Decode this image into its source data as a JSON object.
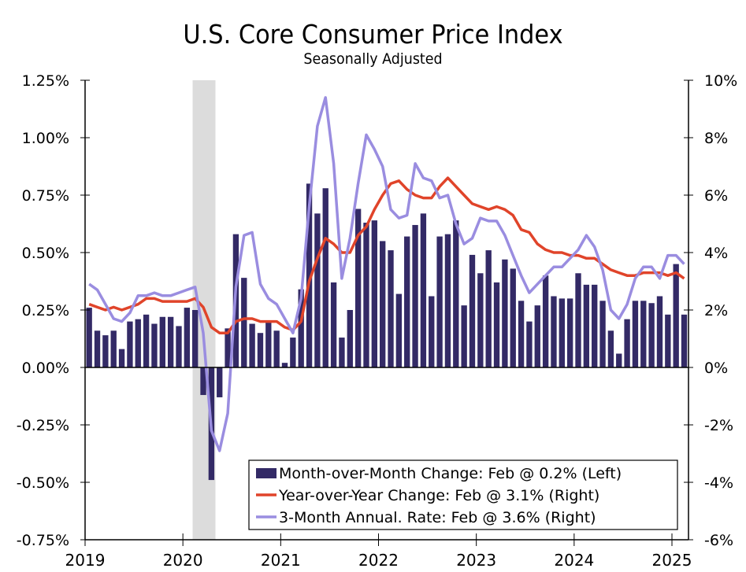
{
  "chart_data": {
    "type": "bar",
    "title": "U.S. Core Consumer Price Index",
    "subtitle": "Seasonally Adjusted",
    "xlabel": "",
    "ylabel_left": "",
    "ylabel_right": "",
    "x_start": "2019-01",
    "x_tick_labels": [
      "2019",
      "2020",
      "2021",
      "2022",
      "2023",
      "2024",
      "2025"
    ],
    "y_left": {
      "range": [
        -0.75,
        1.25
      ],
      "ticks": [
        1.25,
        1.0,
        0.75,
        0.5,
        0.25,
        0.0,
        -0.25,
        -0.5,
        -0.75
      ],
      "tick_labels": [
        "1.25%",
        "1.00%",
        "0.75%",
        "0.50%",
        "0.25%",
        "0.00%",
        "-0.25%",
        "-0.50%",
        "-0.75%"
      ]
    },
    "y_right": {
      "range": [
        -6,
        10
      ],
      "ticks": [
        10,
        8,
        6,
        4,
        2,
        0,
        -2,
        -4,
        -6
      ],
      "tick_labels": [
        "10%",
        "8%",
        "6%",
        "4%",
        "2%",
        "0%",
        "-2%",
        "-4%",
        "-6%"
      ]
    },
    "grid": false,
    "recession_shading": {
      "start": "2020-02",
      "end": "2020-04",
      "color": "#dcdcdc"
    },
    "legend_position": "bottom-right",
    "series": [
      {
        "name": "Month-over-Month Change: Feb @ 0.2% (Left)",
        "type": "bar",
        "axis": "left",
        "color": "#332a66",
        "values": [
          0.26,
          0.16,
          0.14,
          0.16,
          0.08,
          0.2,
          0.21,
          0.23,
          0.19,
          0.22,
          0.22,
          0.18,
          0.26,
          0.25,
          -0.12,
          -0.49,
          -0.13,
          0.17,
          0.58,
          0.39,
          0.19,
          0.15,
          0.2,
          0.16,
          0.02,
          0.13,
          0.34,
          0.8,
          0.67,
          0.78,
          0.37,
          0.13,
          0.25,
          0.69,
          0.63,
          0.64,
          0.55,
          0.51,
          0.32,
          0.57,
          0.62,
          0.67,
          0.31,
          0.57,
          0.58,
          0.64,
          0.27,
          0.49,
          0.41,
          0.51,
          0.37,
          0.47,
          0.43,
          0.29,
          0.2,
          0.27,
          0.4,
          0.31,
          0.3,
          0.3,
          0.41,
          0.36,
          0.36,
          0.29,
          0.16,
          0.06,
          0.21,
          0.29,
          0.29,
          0.28,
          0.31,
          0.23,
          0.45,
          0.23
        ]
      },
      {
        "name": "Year-over-Year Change: Feb @ 3.1% (Right)",
        "type": "line",
        "axis": "right",
        "color": "#e0442a",
        "values": [
          2.2,
          2.1,
          2.0,
          2.1,
          2.0,
          2.1,
          2.2,
          2.4,
          2.4,
          2.3,
          2.3,
          2.3,
          2.3,
          2.4,
          2.1,
          1.4,
          1.2,
          1.2,
          1.6,
          1.7,
          1.7,
          1.6,
          1.6,
          1.6,
          1.4,
          1.3,
          1.6,
          3.0,
          3.8,
          4.5,
          4.3,
          4.0,
          4.0,
          4.6,
          4.9,
          5.5,
          6.0,
          6.4,
          6.5,
          6.2,
          6.0,
          5.9,
          5.9,
          6.3,
          6.6,
          6.3,
          6.0,
          5.7,
          5.6,
          5.5,
          5.6,
          5.5,
          5.3,
          4.8,
          4.7,
          4.3,
          4.1,
          4.0,
          4.0,
          3.9,
          3.9,
          3.8,
          3.8,
          3.6,
          3.4,
          3.3,
          3.2,
          3.2,
          3.3,
          3.3,
          3.3,
          3.2,
          3.3,
          3.1
        ]
      },
      {
        "name": "3-Month Annual. Rate: Feb @ 3.6% (Right)",
        "type": "line",
        "axis": "right",
        "color": "#9a8de0",
        "values": [
          2.9,
          2.7,
          2.2,
          1.7,
          1.6,
          1.9,
          2.5,
          2.5,
          2.6,
          2.5,
          2.5,
          2.6,
          2.7,
          2.8,
          1.2,
          -2.2,
          -2.9,
          -1.6,
          2.8,
          4.6,
          4.7,
          2.9,
          2.4,
          2.2,
          1.7,
          1.2,
          2.4,
          5.6,
          8.4,
          9.4,
          7.1,
          3.1,
          4.5,
          6.4,
          8.1,
          7.6,
          7.0,
          5.5,
          5.2,
          5.3,
          7.1,
          6.6,
          6.5,
          5.9,
          6.0,
          5.0,
          4.3,
          4.5,
          5.2,
          5.1,
          5.1,
          4.6,
          3.9,
          3.2,
          2.6,
          2.9,
          3.2,
          3.5,
          3.5,
          3.8,
          4.1,
          4.6,
          4.2,
          3.4,
          2.0,
          1.7,
          2.2,
          3.1,
          3.5,
          3.5,
          3.1,
          3.9,
          3.9,
          3.6
        ]
      }
    ]
  }
}
